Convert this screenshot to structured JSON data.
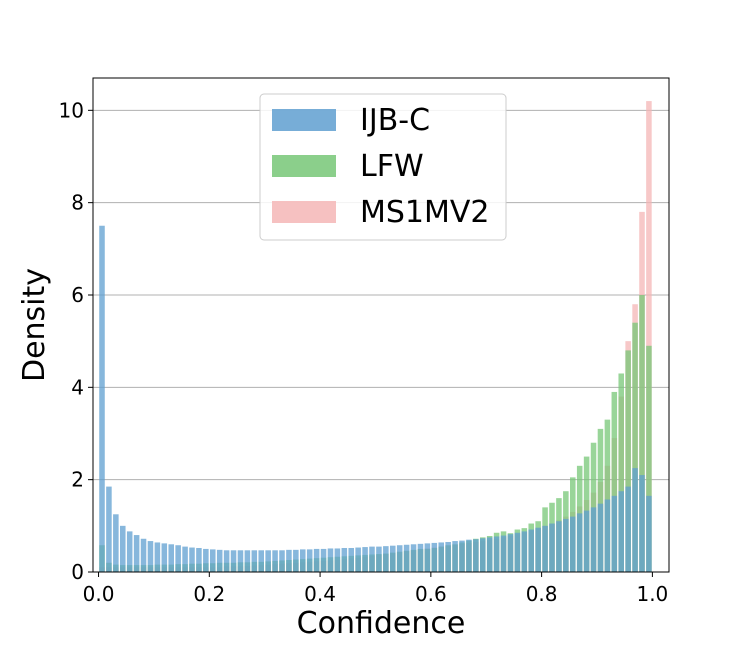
{
  "chart_data": {
    "type": "bar",
    "xlabel": "Confidence",
    "ylabel": "Density",
    "xlim": [
      -0.01,
      1.03
    ],
    "ylim": [
      0,
      10.7
    ],
    "x_ticks": [
      "0.0",
      "0.2",
      "0.4",
      "0.6",
      "0.8",
      "1.0"
    ],
    "y_ticks": [
      "0",
      "2",
      "4",
      "6",
      "8",
      "10"
    ],
    "grid": "horizontal",
    "legend_position": "top-center",
    "bin_width": 0.0125,
    "bin_centers": [
      0.00625,
      0.01875,
      0.03125,
      0.04375,
      0.05625,
      0.06875,
      0.08125,
      0.09375,
      0.10625,
      0.11875,
      0.13125,
      0.14375,
      0.15625,
      0.16875,
      0.18125,
      0.19375,
      0.20625,
      0.21875,
      0.23125,
      0.24375,
      0.25625,
      0.26875,
      0.28125,
      0.29375,
      0.30625,
      0.31875,
      0.33125,
      0.34375,
      0.35625,
      0.36875,
      0.38125,
      0.39375,
      0.40625,
      0.41875,
      0.43125,
      0.44375,
      0.45625,
      0.46875,
      0.48125,
      0.49375,
      0.50625,
      0.51875,
      0.53125,
      0.54375,
      0.55625,
      0.56875,
      0.58125,
      0.59375,
      0.60625,
      0.61875,
      0.63125,
      0.64375,
      0.65625,
      0.66875,
      0.68125,
      0.69375,
      0.70625,
      0.71875,
      0.73125,
      0.74375,
      0.75625,
      0.76875,
      0.78125,
      0.79375,
      0.80625,
      0.81875,
      0.83125,
      0.84375,
      0.85625,
      0.86875,
      0.88125,
      0.89375,
      0.90625,
      0.91875,
      0.93125,
      0.94375,
      0.95625,
      0.96875,
      0.98125,
      0.99375
    ],
    "series": [
      {
        "name": "MS1MV2",
        "color": "#f4b6b6",
        "values": [
          0.1,
          0.1,
          0.1,
          0.1,
          0.1,
          0.1,
          0.1,
          0.1,
          0.1,
          0.1,
          0.1,
          0.1,
          0.1,
          0.1,
          0.1,
          0.1,
          0.1,
          0.1,
          0.12,
          0.12,
          0.12,
          0.13,
          0.14,
          0.15,
          0.16,
          0.17,
          0.18,
          0.19,
          0.2,
          0.21,
          0.22,
          0.23,
          0.24,
          0.25,
          0.26,
          0.28,
          0.3,
          0.31,
          0.33,
          0.35,
          0.37,
          0.39,
          0.41,
          0.43,
          0.45,
          0.47,
          0.49,
          0.51,
          0.53,
          0.55,
          0.57,
          0.59,
          0.61,
          0.63,
          0.65,
          0.67,
          0.7,
          0.72,
          0.75,
          0.78,
          0.82,
          0.86,
          0.9,
          0.95,
          1.0,
          1.05,
          1.12,
          1.2,
          1.3,
          1.42,
          1.56,
          1.72,
          1.95,
          2.3,
          2.9,
          3.8,
          5.0,
          5.8,
          7.8,
          10.2
        ]
      },
      {
        "name": "LFW",
        "color": "#77c777",
        "values": [
          0.58,
          0.2,
          0.16,
          0.15,
          0.15,
          0.15,
          0.15,
          0.15,
          0.16,
          0.16,
          0.16,
          0.17,
          0.17,
          0.18,
          0.18,
          0.19,
          0.19,
          0.2,
          0.2,
          0.2,
          0.21,
          0.21,
          0.22,
          0.22,
          0.23,
          0.24,
          0.25,
          0.26,
          0.27,
          0.28,
          0.29,
          0.3,
          0.31,
          0.32,
          0.33,
          0.34,
          0.35,
          0.36,
          0.37,
          0.38,
          0.39,
          0.4,
          0.42,
          0.44,
          0.46,
          0.48,
          0.5,
          0.5,
          0.52,
          0.55,
          0.58,
          0.6,
          0.64,
          0.68,
          0.72,
          0.75,
          0.78,
          0.85,
          0.88,
          0.84,
          0.92,
          0.95,
          1.05,
          1.1,
          1.4,
          1.5,
          1.6,
          1.75,
          2.05,
          2.3,
          2.5,
          2.8,
          3.1,
          3.3,
          3.9,
          4.3,
          4.8,
          5.4,
          6.0,
          4.9
        ]
      },
      {
        "name": "IJB-C",
        "color": "#5f9fd0",
        "values": [
          7.5,
          1.85,
          1.25,
          1.0,
          0.88,
          0.8,
          0.72,
          0.67,
          0.64,
          0.62,
          0.6,
          0.58,
          0.55,
          0.53,
          0.52,
          0.5,
          0.49,
          0.48,
          0.47,
          0.47,
          0.47,
          0.47,
          0.47,
          0.47,
          0.47,
          0.47,
          0.47,
          0.48,
          0.48,
          0.49,
          0.49,
          0.5,
          0.5,
          0.51,
          0.51,
          0.52,
          0.52,
          0.53,
          0.54,
          0.55,
          0.55,
          0.56,
          0.57,
          0.58,
          0.59,
          0.6,
          0.61,
          0.62,
          0.63,
          0.64,
          0.65,
          0.67,
          0.68,
          0.7,
          0.71,
          0.73,
          0.75,
          0.77,
          0.79,
          0.82,
          0.85,
          0.88,
          0.92,
          0.96,
          1.0,
          1.05,
          1.1,
          1.15,
          1.2,
          1.27,
          1.33,
          1.4,
          1.48,
          1.57,
          1.65,
          1.75,
          1.85,
          2.25,
          2.1,
          1.65
        ]
      }
    ]
  },
  "legend": {
    "items": [
      {
        "label": "IJB-C",
        "color": "#5f9fd0"
      },
      {
        "label": "LFW",
        "color": "#77c777"
      },
      {
        "label": "MS1MV2",
        "color": "#f4b6b6"
      }
    ]
  }
}
